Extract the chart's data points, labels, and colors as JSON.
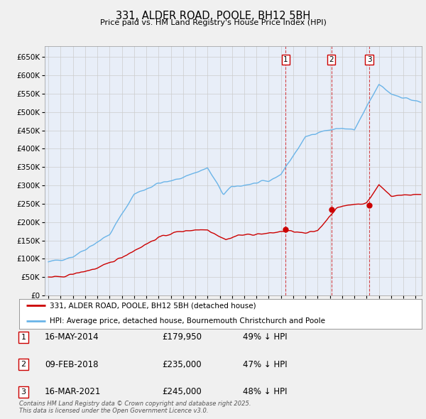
{
  "title": "331, ALDER ROAD, POOLE, BH12 5BH",
  "subtitle": "Price paid vs. HM Land Registry's House Price Index (HPI)",
  "legend_line1": "331, ALDER ROAD, POOLE, BH12 5BH (detached house)",
  "legend_line2": "HPI: Average price, detached house, Bournemouth Christchurch and Poole",
  "footer": "Contains HM Land Registry data © Crown copyright and database right 2025.\nThis data is licensed under the Open Government Licence v3.0.",
  "table_data": [
    [
      "1",
      "16-MAY-2014",
      "£179,950",
      "49% ↓ HPI"
    ],
    [
      "2",
      "09-FEB-2018",
      "£235,000",
      "47% ↓ HPI"
    ],
    [
      "3",
      "16-MAR-2021",
      "£245,000",
      "48% ↓ HPI"
    ]
  ],
  "transaction_years": [
    2014.37,
    2018.12,
    2021.21
  ],
  "transaction_prices": [
    179950,
    235000,
    245000
  ],
  "hpi_color": "#6ab4e8",
  "price_color": "#cc0000",
  "vline_color": "#cc0000",
  "background_color": "#f0f0f0",
  "plot_bg": "#e8eef8",
  "ylim": [
    0,
    680000
  ],
  "xlim_start": 1994.7,
  "xlim_end": 2025.5
}
